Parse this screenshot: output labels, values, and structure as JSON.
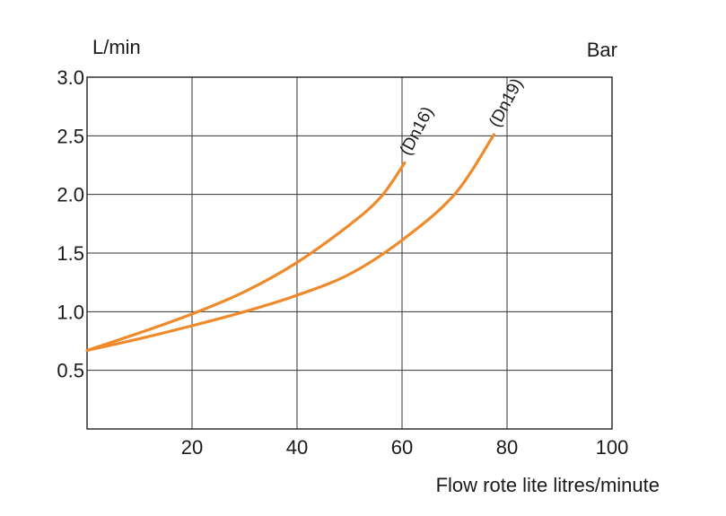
{
  "chart_data": {
    "type": "line",
    "y_unit_label": "L/min",
    "right_unit_label": "Bar",
    "xlabel": "Flow rote lite litres/minute",
    "ylabel": "",
    "xlim": [
      0,
      100
    ],
    "ylim": [
      0,
      3.0
    ],
    "x_ticks": [
      20,
      40,
      60,
      80,
      100
    ],
    "x_tick_labels": [
      "20",
      "40",
      "60",
      "80",
      "100"
    ],
    "y_ticks": [
      0.5,
      1.0,
      1.5,
      2.0,
      2.5,
      3.0
    ],
    "y_tick_labels": [
      "0.5",
      "1.0",
      "1.5",
      "2.0",
      "2.5",
      "3.0"
    ],
    "x_grid": [
      20,
      40,
      60,
      80
    ],
    "y_grid": [
      0.5,
      1.0,
      1.5,
      2.0,
      2.5
    ],
    "grid": true,
    "line_color": "#EE8A2A",
    "series": [
      {
        "name": "(Dn16)",
        "x": [
          0,
          10,
          20,
          30,
          40,
          50,
          56,
          60.5
        ],
        "y": [
          0.67,
          0.82,
          0.98,
          1.17,
          1.42,
          1.74,
          1.98,
          2.27
        ]
      },
      {
        "name": "(Dn19)",
        "x": [
          0,
          10,
          20,
          30,
          40,
          50,
          60,
          70,
          77.5
        ],
        "y": [
          0.67,
          0.77,
          0.88,
          1.0,
          1.14,
          1.32,
          1.61,
          2.0,
          2.51
        ]
      }
    ]
  }
}
